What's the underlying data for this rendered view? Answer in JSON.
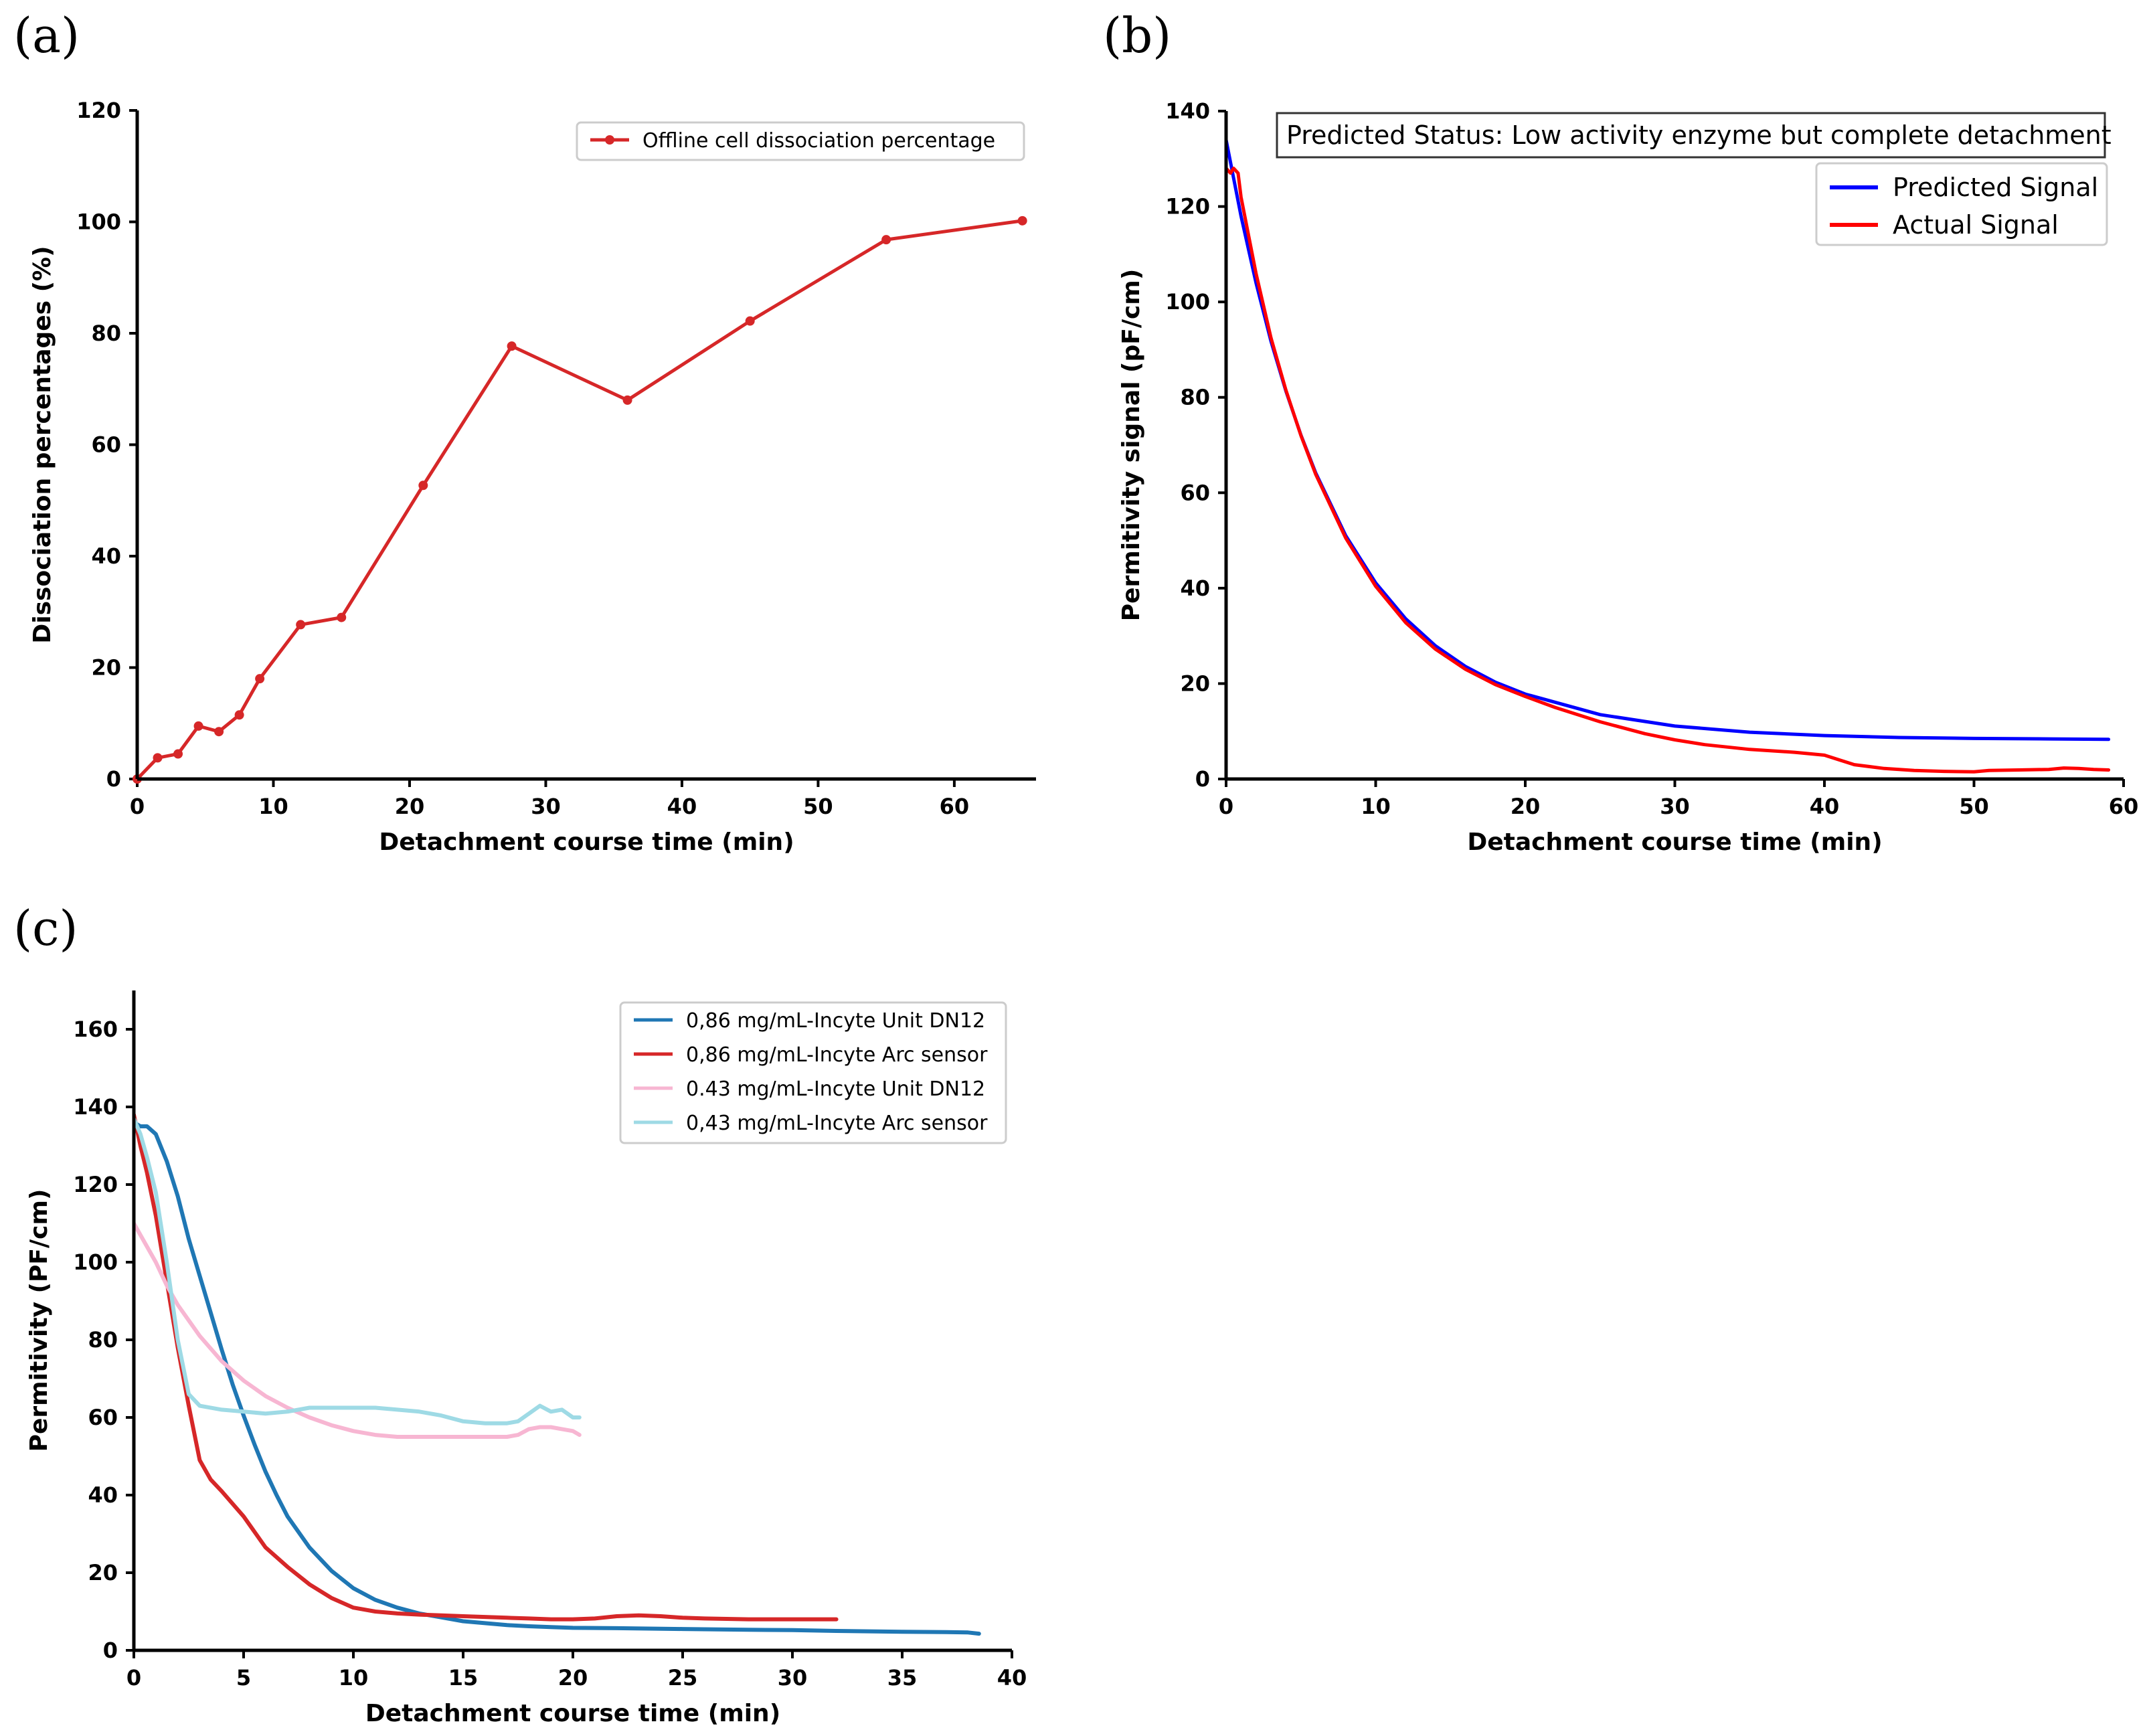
{
  "chart_data": [
    {
      "panel": "(a)",
      "type": "line",
      "xlabel": "Detachment course time (min)",
      "ylabel": "Dissociation percentages (%)",
      "xlim": [
        0,
        66
      ],
      "ylim": [
        0,
        120
      ],
      "xticks": [
        0,
        10,
        20,
        30,
        40,
        50,
        60
      ],
      "yticks": [
        0,
        20,
        40,
        60,
        80,
        100,
        120
      ],
      "legend_position": "top-right",
      "series": [
        {
          "name": "Offline cell dissociation percentage",
          "color": "#d62728",
          "marker": "dot",
          "x": [
            0,
            1.5,
            3,
            4.5,
            6,
            7.5,
            9,
            12,
            15,
            21,
            27.5,
            36,
            45,
            55,
            65
          ],
          "y": [
            0,
            3.8,
            4.5,
            9.5,
            8.5,
            11.5,
            18,
            27.7,
            29,
            52.7,
            77.7,
            68,
            82.2,
            96.8,
            100.2
          ]
        }
      ]
    },
    {
      "panel": "(b)",
      "type": "line",
      "xlabel": "Detachment course time (min)",
      "ylabel": "Permitivity signal (pF/cm)",
      "xlim": [
        0,
        60
      ],
      "ylim": [
        0,
        140
      ],
      "xticks": [
        0,
        10,
        20,
        30,
        40,
        50,
        60
      ],
      "yticks": [
        0,
        20,
        40,
        60,
        80,
        100,
        120,
        140
      ],
      "status_text": "Predicted Status: Low activity enzyme but complete detachment",
      "legend_position": "top-right",
      "series": [
        {
          "name": "Predicted Signal",
          "color": "#0000ff",
          "x": [
            0,
            1,
            2,
            3,
            4,
            5,
            6,
            8,
            10,
            12,
            14,
            16,
            18,
            20,
            25,
            30,
            35,
            40,
            45,
            50,
            55,
            59
          ],
          "y": [
            134,
            118,
            104,
            91.8,
            81.3,
            72.1,
            64.1,
            51,
            41.1,
            33.6,
            27.9,
            23.6,
            20.3,
            17.8,
            13.5,
            11.1,
            9.8,
            9.1,
            8.7,
            8.5,
            8.4,
            8.3
          ]
        },
        {
          "name": "Actual Signal",
          "color": "#ff0000",
          "x": [
            0,
            0.3,
            0.5,
            0.8,
            1,
            2,
            3,
            4,
            5,
            6,
            8,
            10,
            12,
            14,
            16,
            18,
            20,
            22,
            25,
            28,
            30,
            32,
            35,
            38,
            40,
            41,
            42,
            44,
            46,
            48,
            50,
            51,
            53,
            55,
            56,
            57,
            58,
            59
          ],
          "y": [
            128,
            127,
            128,
            127,
            122,
            106,
            92.5,
            81.5,
            72,
            63.8,
            50.5,
            40.4,
            32.8,
            27.2,
            23,
            19.8,
            17.3,
            15,
            12,
            9.5,
            8.2,
            7.2,
            6.2,
            5.6,
            5,
            4,
            3,
            2.2,
            1.8,
            1.6,
            1.5,
            1.8,
            1.9,
            2,
            2.3,
            2.2,
            2,
            1.9
          ]
        }
      ]
    },
    {
      "panel": "(c)",
      "type": "line",
      "xlabel": "Detachment course time (min)",
      "ylabel": "Permitivity (PF/cm)",
      "xlim": [
        0,
        40
      ],
      "ylim": [
        0,
        170
      ],
      "xticks": [
        0,
        5,
        10,
        15,
        20,
        25,
        30,
        35,
        40
      ],
      "yticks": [
        0,
        20,
        40,
        60,
        80,
        100,
        120,
        140,
        160
      ],
      "legend_position": "top-right",
      "series": [
        {
          "name": "0,86 mg/mL-Incyte Unit DN12",
          "color": "#1f77b4",
          "x": [
            0,
            0.3,
            0.6,
            1,
            1.5,
            2,
            2.5,
            3,
            3.5,
            4,
            4.5,
            5,
            5.5,
            6,
            6.5,
            7,
            8,
            9,
            10,
            11,
            12,
            13,
            14,
            15,
            16,
            17,
            18,
            19,
            20,
            22,
            25,
            28,
            30,
            32,
            35,
            37,
            38,
            38.5
          ],
          "y": [
            136,
            135,
            135,
            133,
            126,
            117,
            106,
            96.5,
            87,
            77.5,
            68.5,
            60.5,
            53,
            46,
            40,
            34.5,
            26.5,
            20.5,
            16,
            13,
            11,
            9.5,
            8.5,
            7.5,
            7,
            6.5,
            6.2,
            6,
            5.8,
            5.7,
            5.5,
            5.3,
            5.2,
            5,
            4.8,
            4.7,
            4.6,
            4.3
          ]
        },
        {
          "name": "0,86 mg/mL-Incyte Arc sensor",
          "color": "#d62728",
          "x": [
            0,
            0.3,
            0.6,
            1,
            1.5,
            2,
            2.5,
            3,
            3.5,
            4,
            5,
            6,
            7,
            8,
            9,
            10,
            11,
            12,
            13,
            14,
            15,
            16,
            17,
            18,
            19,
            20,
            21,
            22,
            23,
            24,
            25,
            26,
            27,
            28,
            29,
            30,
            31,
            32
          ],
          "y": [
            138,
            130,
            123,
            112,
            95,
            78,
            63,
            49,
            44,
            41,
            34.5,
            26.5,
            21.5,
            17,
            13.5,
            11,
            10,
            9.5,
            9.2,
            9,
            8.8,
            8.6,
            8.4,
            8.2,
            8,
            8,
            8.2,
            8.8,
            9,
            8.8,
            8.4,
            8.2,
            8.1,
            8,
            8,
            8,
            8,
            8
          ]
        },
        {
          "name": "0.43 mg/mL-Incyte Unit DN12",
          "color": "#f7b6d2",
          "x": [
            0,
            0.5,
            1,
            1.5,
            2,
            2.5,
            3,
            4,
            5,
            6,
            7,
            8,
            9,
            10,
            11,
            12,
            13,
            14,
            15,
            16,
            17,
            17.5,
            18,
            18.5,
            19,
            19.5,
            20,
            20.3
          ],
          "y": [
            110,
            105,
            100,
            94,
            89,
            85,
            81,
            74.5,
            69.5,
            65.5,
            62.5,
            60,
            58,
            56.5,
            55.5,
            55,
            55,
            55,
            55,
            55,
            55,
            55.5,
            57,
            57.5,
            57.5,
            57,
            56.5,
            55.5
          ]
        },
        {
          "name": "0,43 mg/mL-Incyte Arc sensor",
          "color": "#9edae5",
          "x": [
            0,
            0.3,
            0.6,
            1,
            1.5,
            2,
            2.5,
            3,
            4,
            5,
            6,
            7,
            8,
            9,
            10,
            11,
            12,
            13,
            14,
            15,
            16,
            17,
            17.5,
            18,
            18.5,
            19,
            19.5,
            20,
            20.3
          ],
          "y": [
            137,
            133,
            127,
            118,
            100,
            80,
            66,
            63,
            62,
            61.5,
            61,
            61.5,
            62.5,
            62.5,
            62.5,
            62.5,
            62,
            61.5,
            60.5,
            59,
            58.5,
            58.5,
            59,
            61,
            63,
            61.5,
            62,
            60,
            60
          ]
        }
      ]
    }
  ]
}
